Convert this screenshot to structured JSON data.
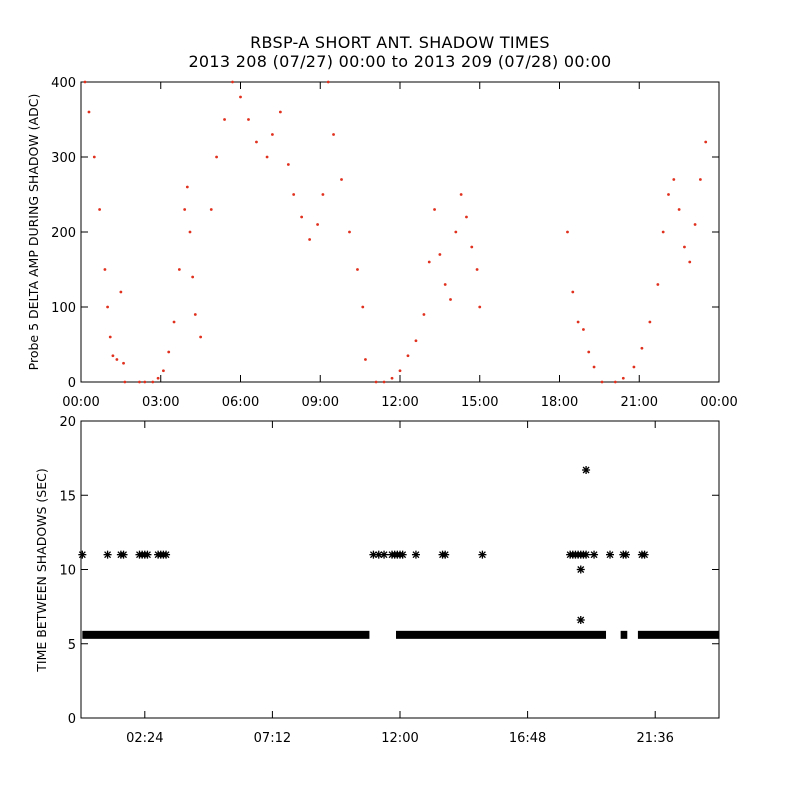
{
  "title_line1": "RBSP-A SHORT ANT. SHADOW TIMES",
  "title_line2": "2013 208 (07/27) 00:00 to 2013 209 (07/28) 00:00",
  "colors": {
    "top_points": "#e0301e",
    "bottom_points": "#000000",
    "axes": "#000000"
  },
  "chart_data": [
    {
      "type": "scatter",
      "ylabel": "Probe 5 DELTA AMP DURING SHADOW (ADC)",
      "xlabel": "",
      "xlim": [
        0,
        24
      ],
      "ylim": [
        0,
        400
      ],
      "xticks": [
        0,
        3,
        6,
        9,
        12,
        15,
        18,
        21,
        24
      ],
      "xtick_labels": [
        "00:00",
        "03:00",
        "06:00",
        "09:00",
        "12:00",
        "15:00",
        "18:00",
        "21:00",
        "00:00"
      ],
      "yticks": [
        0,
        100,
        200,
        300,
        400
      ],
      "ytick_labels": [
        "0",
        "100",
        "200",
        "300",
        "400"
      ],
      "marker": "dot",
      "series": [
        {
          "x": [
            0.15,
            0.3,
            0.5,
            0.7,
            0.9,
            1.0,
            1.1,
            1.2,
            1.35,
            1.5,
            1.6,
            1.65,
            2.2,
            2.4,
            2.7,
            2.9,
            3.1,
            3.3,
            3.5,
            3.7,
            3.9,
            4.0,
            4.1,
            4.2,
            4.3,
            4.5,
            4.9,
            5.1,
            5.4,
            5.7,
            6.0,
            6.3,
            6.6,
            7.0,
            7.2,
            7.5,
            7.8,
            8.0,
            8.3,
            8.6,
            8.9,
            9.1,
            9.3,
            9.5,
            9.8,
            10.1,
            10.4,
            10.6,
            10.7,
            11.1,
            11.4,
            11.7,
            12.0,
            12.3,
            12.6,
            12.9,
            13.1,
            13.3,
            13.5,
            13.7,
            13.9,
            14.1,
            14.3,
            14.5,
            14.7,
            14.9,
            15.0,
            18.3,
            18.5,
            18.7,
            18.9,
            19.1,
            19.3,
            19.6,
            20.1,
            20.4,
            20.8,
            21.1,
            21.4,
            21.7,
            21.9,
            22.1,
            22.3,
            22.5,
            22.7,
            22.9,
            23.1,
            23.3,
            23.5
          ],
          "y": [
            400,
            360,
            300,
            230,
            150,
            100,
            60,
            35,
            30,
            120,
            25,
            0,
            0,
            0,
            0,
            5,
            15,
            40,
            80,
            150,
            230,
            260,
            200,
            140,
            90,
            60,
            230,
            300,
            350,
            400,
            380,
            350,
            320,
            300,
            330,
            360,
            290,
            250,
            220,
            190,
            210,
            250,
            400,
            330,
            270,
            200,
            150,
            100,
            30,
            0,
            0,
            5,
            15,
            35,
            55,
            90,
            160,
            230,
            170,
            130,
            110,
            200,
            250,
            220,
            180,
            150,
            100,
            200,
            120,
            80,
            70,
            40,
            20,
            0,
            0,
            5,
            20,
            45,
            80,
            130,
            200,
            250,
            270,
            230,
            180,
            160,
            210,
            270,
            320
          ]
        }
      ]
    },
    {
      "type": "scatter",
      "ylabel": "TIME BETWEEN SHADOWS (SEC)",
      "xlabel": "",
      "xlim": [
        0,
        24
      ],
      "ylim": [
        0,
        20
      ],
      "xticks": [
        2.4,
        7.2,
        12.0,
        16.8,
        21.6
      ],
      "xtick_labels": [
        "02:24",
        "07:12",
        "12:00",
        "16:48",
        "21:36"
      ],
      "yticks": [
        0,
        5,
        10,
        15,
        20
      ],
      "ytick_labels": [
        "0",
        "5",
        "10",
        "15",
        "20"
      ],
      "marker": "asterisk",
      "baseline_value": 5.6,
      "baseline_segments": [
        [
          0.05,
          10.85
        ],
        [
          11.85,
          19.75
        ],
        [
          20.3,
          20.55
        ],
        [
          20.95,
          24.0
        ]
      ],
      "series": [
        {
          "x": [
            0.05,
            1.0,
            1.5,
            1.6,
            2.2,
            2.3,
            2.4,
            2.5,
            2.9,
            3.0,
            3.1,
            3.2,
            11.0,
            11.2,
            11.4,
            11.7,
            11.8,
            11.9,
            12.0,
            12.1,
            12.6,
            13.6,
            13.7,
            15.1,
            18.4,
            18.5,
            18.6,
            18.7,
            18.8,
            18.9,
            19.0,
            19.3,
            19.9,
            20.4,
            20.5,
            21.1,
            21.2,
            18.8,
            18.8,
            19.0
          ],
          "y": [
            11,
            11,
            11,
            11,
            11,
            11,
            11,
            11,
            11,
            11,
            11,
            11,
            11,
            11,
            11,
            11,
            11,
            11,
            11,
            11,
            11,
            11,
            11,
            11,
            11,
            11,
            11,
            11,
            11,
            11,
            11,
            11,
            11,
            11,
            11,
            11,
            11,
            10,
            6.6,
            16.7
          ]
        }
      ]
    }
  ]
}
